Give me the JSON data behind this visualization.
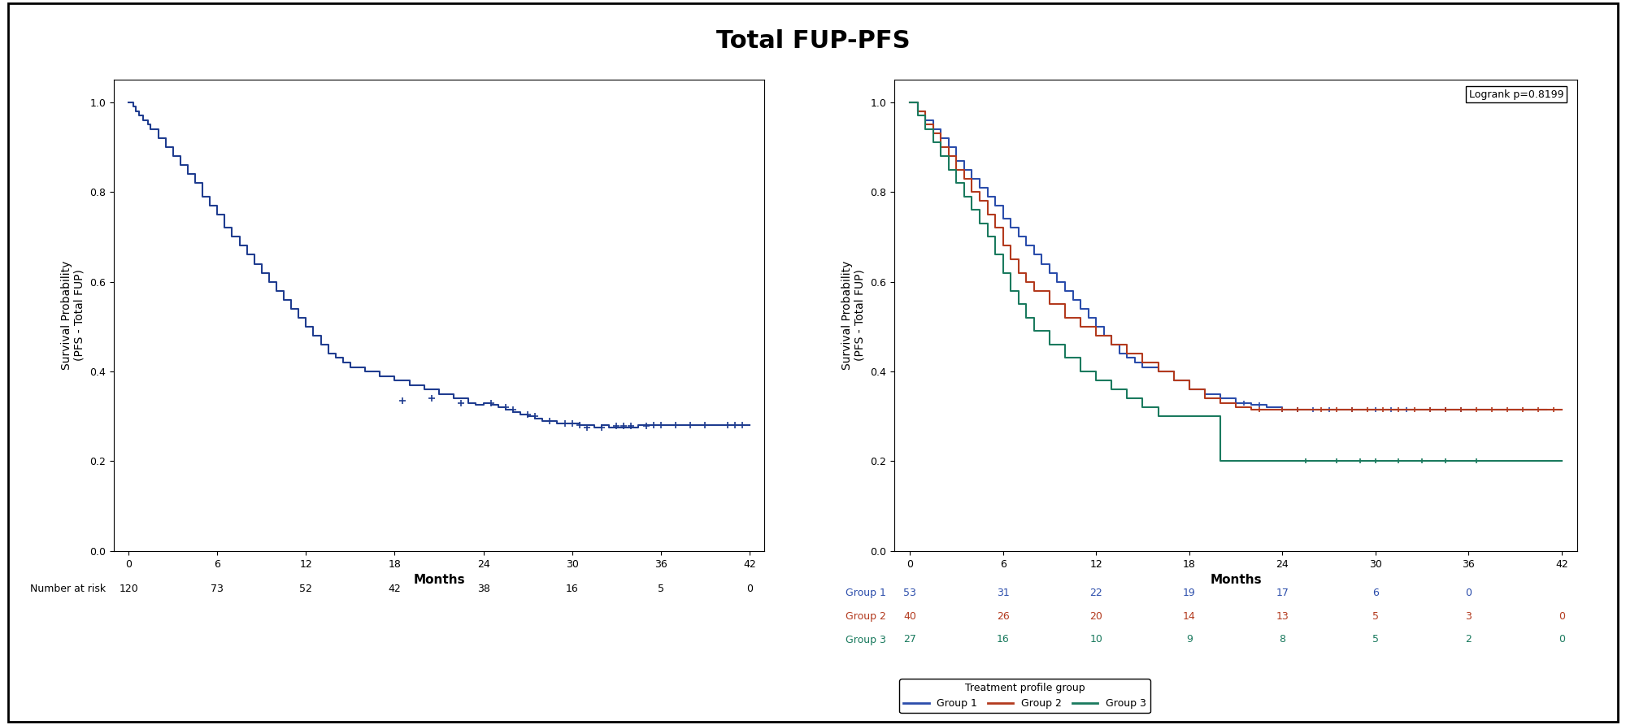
{
  "title": "Total FUP-PFS",
  "title_fontsize": 22,
  "title_fontweight": "bold",
  "background_color": "#ffffff",
  "left_plot": {
    "ylabel": "Survival Probability\n(PFS - Total FUP)",
    "xlabel": "Months",
    "ylim": [
      0.0,
      1.05
    ],
    "xlim": [
      -1,
      43
    ],
    "yticks": [
      0.0,
      0.2,
      0.4,
      0.6,
      0.8,
      1.0
    ],
    "xticks": [
      0,
      6,
      12,
      18,
      24,
      30,
      36,
      42
    ],
    "color": "#1f3c8f",
    "number_at_risk_label": "Number at risk",
    "number_at_risk_values": [
      120,
      73,
      52,
      42,
      38,
      16,
      5,
      0
    ],
    "number_at_risk_times": [
      0,
      6,
      12,
      18,
      24,
      30,
      36,
      42
    ],
    "km_times": [
      0,
      0.3,
      0.5,
      0.7,
      1.0,
      1.3,
      1.5,
      2.0,
      2.5,
      3.0,
      3.5,
      4.0,
      4.5,
      5.0,
      5.5,
      6.0,
      6.5,
      7.0,
      7.5,
      8.0,
      8.5,
      9.0,
      9.5,
      10.0,
      10.5,
      11.0,
      11.5,
      12.0,
      12.5,
      13.0,
      13.5,
      14.0,
      14.5,
      15.0,
      16.0,
      17.0,
      18.0,
      19.0,
      20.0,
      21.0,
      22.0,
      23.0,
      23.5,
      24.0,
      24.5,
      25.0,
      25.5,
      26.0,
      26.5,
      27.0,
      27.5,
      28.0,
      29.0,
      30.0,
      30.5,
      31.0,
      31.5,
      32.0,
      32.5,
      33.0,
      33.5,
      34.0,
      34.5,
      35.0,
      35.5,
      36.0,
      37.0,
      38.0,
      39.0,
      40.0,
      41.0,
      42.0
    ],
    "km_surv": [
      1.0,
      0.99,
      0.98,
      0.97,
      0.96,
      0.95,
      0.94,
      0.92,
      0.9,
      0.88,
      0.86,
      0.84,
      0.82,
      0.79,
      0.77,
      0.75,
      0.72,
      0.7,
      0.68,
      0.66,
      0.64,
      0.62,
      0.6,
      0.58,
      0.56,
      0.54,
      0.52,
      0.5,
      0.48,
      0.46,
      0.44,
      0.43,
      0.42,
      0.41,
      0.4,
      0.39,
      0.38,
      0.37,
      0.36,
      0.35,
      0.34,
      0.33,
      0.325,
      0.33,
      0.325,
      0.32,
      0.315,
      0.31,
      0.305,
      0.3,
      0.295,
      0.29,
      0.285,
      0.285,
      0.28,
      0.28,
      0.275,
      0.28,
      0.275,
      0.275,
      0.275,
      0.275,
      0.28,
      0.28,
      0.28,
      0.28,
      0.28,
      0.28,
      0.28,
      0.28,
      0.28,
      0.28
    ],
    "censor_times": [
      18.5,
      20.5,
      22.5,
      24.5,
      25.5,
      26.0,
      27.0,
      27.5,
      28.5,
      29.5,
      30.0,
      30.5,
      31.0,
      32.0,
      33.0,
      33.5,
      34.0,
      35.0,
      35.5,
      36.0,
      37.0,
      38.0,
      39.0,
      40.5,
      41.0,
      41.5
    ],
    "censor_surv": [
      0.335,
      0.34,
      0.33,
      0.33,
      0.32,
      0.315,
      0.305,
      0.3,
      0.29,
      0.285,
      0.285,
      0.28,
      0.275,
      0.275,
      0.278,
      0.278,
      0.278,
      0.278,
      0.28,
      0.28,
      0.28,
      0.28,
      0.28,
      0.28,
      0.28,
      0.28
    ]
  },
  "right_plot": {
    "ylabel": "Survival Probability\n(PFS - Total FUP)",
    "xlabel": "Months",
    "ylim": [
      0.0,
      1.05
    ],
    "xlim": [
      -1,
      43
    ],
    "yticks": [
      0.0,
      0.2,
      0.4,
      0.6,
      0.8,
      1.0
    ],
    "xticks": [
      0,
      6,
      12,
      18,
      24,
      30,
      36,
      42
    ],
    "logrank_text": "Logrank p=0.8199",
    "groups": [
      "Group 1",
      "Group 2",
      "Group 3"
    ],
    "colors": [
      "#2b4dab",
      "#b33a1e",
      "#1a7a5e"
    ],
    "number_at_risk_times": [
      0,
      6,
      12,
      18,
      24,
      30,
      36,
      42
    ],
    "number_at_risk": {
      "Group 1": [
        53,
        31,
        22,
        19,
        17,
        6,
        0,
        null
      ],
      "Group 2": [
        40,
        26,
        20,
        14,
        13,
        5,
        3,
        0
      ],
      "Group 3": [
        27,
        16,
        10,
        9,
        8,
        5,
        2,
        0
      ]
    },
    "group1_km_times": [
      0,
      0.5,
      1.0,
      1.5,
      2.0,
      2.5,
      3.0,
      3.5,
      4.0,
      4.5,
      5.0,
      5.5,
      6.0,
      6.5,
      7.0,
      7.5,
      8.0,
      8.5,
      9.0,
      9.5,
      10.0,
      10.5,
      11.0,
      11.5,
      12.0,
      12.5,
      13.0,
      13.5,
      14.0,
      14.5,
      15.0,
      16.0,
      17.0,
      18.0,
      19.0,
      20.0,
      21.0,
      22.0,
      23.0,
      24.0,
      25.0,
      26.0,
      27.0,
      28.0,
      29.0,
      30.0,
      31.0,
      32.0,
      33.0,
      34.0,
      35.0,
      36.0,
      37.0,
      38.0,
      39.0,
      40.0,
      41.0
    ],
    "group1_km_surv": [
      1.0,
      0.98,
      0.96,
      0.94,
      0.92,
      0.9,
      0.87,
      0.85,
      0.83,
      0.81,
      0.79,
      0.77,
      0.74,
      0.72,
      0.7,
      0.68,
      0.66,
      0.64,
      0.62,
      0.6,
      0.58,
      0.56,
      0.54,
      0.52,
      0.5,
      0.48,
      0.46,
      0.44,
      0.43,
      0.42,
      0.41,
      0.4,
      0.38,
      0.36,
      0.35,
      0.34,
      0.33,
      0.325,
      0.32,
      0.315,
      0.315,
      0.315,
      0.315,
      0.315,
      0.315,
      0.315,
      0.315,
      0.315,
      0.315,
      0.315,
      0.315,
      0.315,
      0.315,
      0.315,
      0.315,
      0.315,
      0.315
    ],
    "group1_censor_times": [
      21.5,
      22.5,
      24.0,
      25.0,
      26.0,
      27.0,
      28.5,
      30.0,
      31.0,
      32.0,
      33.5,
      34.5,
      35.5
    ],
    "group1_censor_surv": [
      0.33,
      0.325,
      0.315,
      0.315,
      0.315,
      0.315,
      0.315,
      0.315,
      0.315,
      0.315,
      0.315,
      0.315,
      0.315
    ],
    "group2_km_times": [
      0,
      0.5,
      1.0,
      1.5,
      2.0,
      2.5,
      3.0,
      3.5,
      4.0,
      4.5,
      5.0,
      5.5,
      6.0,
      6.5,
      7.0,
      7.5,
      8.0,
      9.0,
      10.0,
      11.0,
      12.0,
      13.0,
      14.0,
      15.0,
      16.0,
      17.0,
      18.0,
      19.0,
      20.0,
      21.0,
      22.0,
      23.0,
      24.0,
      25.0,
      26.0,
      27.0,
      28.0,
      29.0,
      30.0,
      31.0,
      32.0,
      33.0,
      34.0,
      35.0,
      36.0,
      37.0,
      38.0,
      39.0,
      40.0,
      41.0,
      42.0
    ],
    "group2_km_surv": [
      1.0,
      0.98,
      0.95,
      0.93,
      0.9,
      0.88,
      0.85,
      0.83,
      0.8,
      0.78,
      0.75,
      0.72,
      0.68,
      0.65,
      0.62,
      0.6,
      0.58,
      0.55,
      0.52,
      0.5,
      0.48,
      0.46,
      0.44,
      0.42,
      0.4,
      0.38,
      0.36,
      0.34,
      0.33,
      0.32,
      0.315,
      0.315,
      0.315,
      0.315,
      0.315,
      0.315,
      0.315,
      0.315,
      0.315,
      0.315,
      0.315,
      0.315,
      0.315,
      0.315,
      0.315,
      0.315,
      0.315,
      0.315,
      0.315,
      0.315,
      0.315
    ],
    "group2_censor_times": [
      22.5,
      24.0,
      25.0,
      26.5,
      27.5,
      28.5,
      29.5,
      30.5,
      31.5,
      32.5,
      33.5,
      34.5,
      35.5,
      36.5,
      37.5,
      38.5,
      39.5,
      40.5,
      41.5
    ],
    "group2_censor_surv": [
      0.315,
      0.315,
      0.315,
      0.315,
      0.315,
      0.315,
      0.315,
      0.315,
      0.315,
      0.315,
      0.315,
      0.315,
      0.315,
      0.315,
      0.315,
      0.315,
      0.315,
      0.315,
      0.315
    ],
    "group3_km_times": [
      0,
      0.5,
      1.0,
      1.5,
      2.0,
      2.5,
      3.0,
      3.5,
      4.0,
      4.5,
      5.0,
      5.5,
      6.0,
      6.5,
      7.0,
      7.5,
      8.0,
      9.0,
      10.0,
      11.0,
      12.0,
      13.0,
      14.0,
      15.0,
      16.0,
      17.0,
      18.0,
      19.0,
      20.0,
      21.0,
      22.0,
      23.0,
      24.0,
      25.0,
      26.0,
      27.0,
      28.0,
      29.0,
      30.0,
      31.0,
      32.0,
      33.0,
      34.0,
      35.0,
      36.0,
      37.0,
      38.0,
      39.0,
      40.0,
      41.0,
      42.0
    ],
    "group3_km_surv": [
      1.0,
      0.97,
      0.94,
      0.91,
      0.88,
      0.85,
      0.82,
      0.79,
      0.76,
      0.73,
      0.7,
      0.66,
      0.62,
      0.58,
      0.55,
      0.52,
      0.49,
      0.46,
      0.43,
      0.4,
      0.38,
      0.36,
      0.34,
      0.32,
      0.3,
      0.3,
      0.3,
      0.3,
      0.2,
      0.2,
      0.2,
      0.2,
      0.2,
      0.2,
      0.2,
      0.2,
      0.2,
      0.2,
      0.2,
      0.2,
      0.2,
      0.2,
      0.2,
      0.2,
      0.2,
      0.2,
      0.2,
      0.2,
      0.2,
      0.2,
      0.2
    ],
    "group3_censor_times": [
      25.5,
      27.5,
      29.0,
      30.0,
      31.5,
      33.0,
      34.5,
      36.5
    ],
    "group3_censor_surv": [
      0.2,
      0.2,
      0.2,
      0.2,
      0.2,
      0.2,
      0.2,
      0.2
    ]
  },
  "legend": {
    "title": "Treatment profile group",
    "groups": [
      "Group 1",
      "Group 2",
      "Group 3"
    ],
    "colors": [
      "#2b4dab",
      "#b33a1e",
      "#1a7a5e"
    ]
  }
}
